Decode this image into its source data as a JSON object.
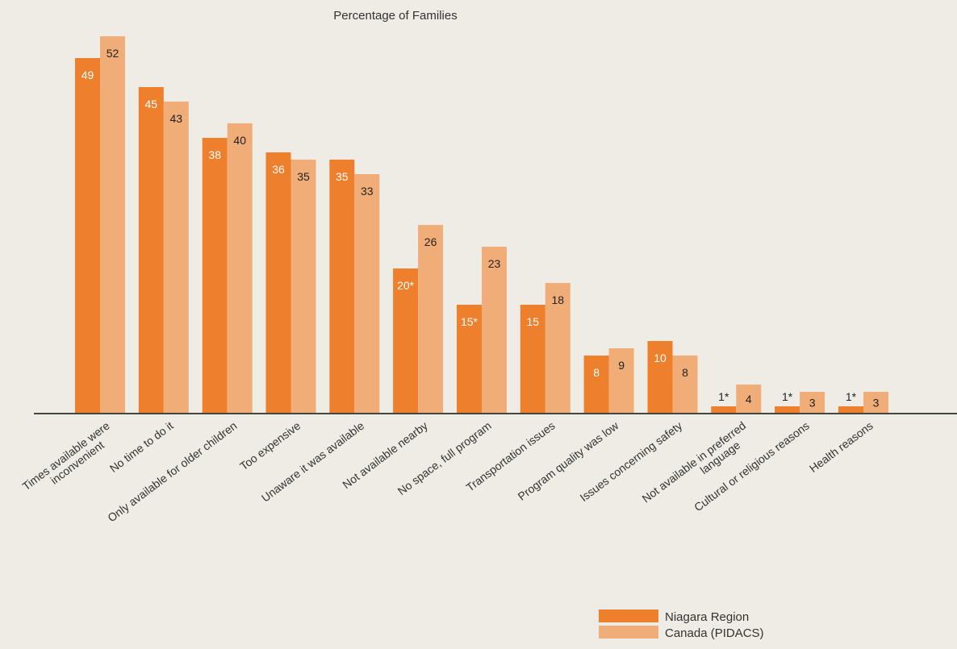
{
  "chart_data": {
    "type": "bar",
    "title": "Percentage of Families",
    "xlabel": "",
    "ylabel": "",
    "ylim": [
      0,
      52
    ],
    "grid": false,
    "legend_position": "bottom-right",
    "categories": [
      [
        "Times available were",
        "inconvenient"
      ],
      [
        "No time to do it"
      ],
      [
        "Only available for older children"
      ],
      [
        "Too expensive"
      ],
      [
        "Unaware it was available"
      ],
      [
        "Not available nearby"
      ],
      [
        "No space, full program"
      ],
      [
        "Transportation issues"
      ],
      [
        "Program quality was low"
      ],
      [
        "Issues concerning safety"
      ],
      [
        "Not available in preferred",
        "language"
      ],
      [
        "Cultural or religious reasons"
      ],
      [
        "Health reasons"
      ]
    ],
    "series": [
      {
        "name": "Niagara Region",
        "color": "#ee7f2d",
        "label_color": "#ffffff",
        "values": [
          49,
          45,
          38,
          36,
          35,
          20,
          15,
          15,
          8,
          10,
          1,
          1,
          1
        ],
        "labels": [
          "49",
          "45",
          "38",
          "36",
          "35",
          "20*",
          "15*",
          "15",
          "8",
          "10",
          "1*",
          "1*",
          "1*"
        ]
      },
      {
        "name": "Canada (PIDACS)",
        "color": "#f0ad78",
        "label_color": "#222222",
        "values": [
          52,
          43,
          40,
          35,
          33,
          26,
          23,
          18,
          9,
          8,
          4,
          3,
          3
        ],
        "labels": [
          "52",
          "43",
          "40",
          "35",
          "33",
          "26",
          "23",
          "18",
          "9",
          "8",
          "4",
          "3",
          "3"
        ]
      }
    ]
  },
  "colors": {
    "background": "#efebe5",
    "axis": "#444444",
    "text": "#333333"
  }
}
